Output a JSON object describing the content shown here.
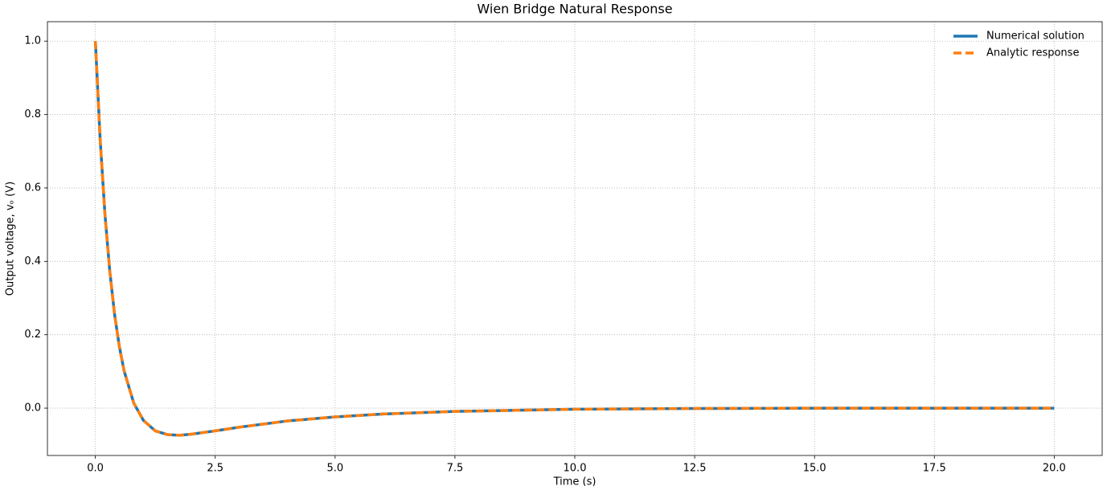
{
  "chart_data": {
    "type": "line",
    "title": "Wien Bridge Natural Response",
    "xlabel": "Time (s)",
    "ylabel": "Output voltage, vₒ (V)",
    "x": [
      0,
      0.1,
      0.2,
      0.3,
      0.4,
      0.5,
      0.6,
      0.8,
      1.0,
      1.25,
      1.5,
      1.75,
      2.0,
      2.5,
      3,
      4,
      5,
      6,
      7.5,
      10,
      12.5,
      15,
      17.5,
      20
    ],
    "series": [
      {
        "name": "Numerical solution",
        "color": "#1f77b4",
        "dash": false,
        "values": [
          1.0,
          0.732,
          0.528,
          0.374,
          0.256,
          0.168,
          0.101,
          0.014,
          -0.033,
          -0.062,
          -0.072,
          -0.074,
          -0.071,
          -0.062,
          -0.052,
          -0.035,
          -0.024,
          -0.016,
          -0.009,
          -0.003,
          -0.001,
          0,
          0,
          0
        ]
      },
      {
        "name": "Analytic response",
        "color": "#ff7f0e",
        "dash": true,
        "values": [
          1.0,
          0.732,
          0.528,
          0.374,
          0.256,
          0.168,
          0.101,
          0.014,
          -0.033,
          -0.062,
          -0.072,
          -0.074,
          -0.071,
          -0.062,
          -0.052,
          -0.035,
          -0.024,
          -0.016,
          -0.009,
          -0.003,
          -0.001,
          0,
          0,
          0
        ]
      }
    ],
    "xlim": [
      -1.0,
      21.0
    ],
    "ylim": [
      -0.129,
      1.053
    ],
    "xticks": [
      {
        "value": 0,
        "label": "0.0"
      },
      2.5,
      {
        "value": 5,
        "label": "5.0"
      },
      7.5,
      {
        "value": 10,
        "label": "10.0"
      },
      12.5,
      {
        "value": 15,
        "label": "15.0"
      },
      17.5,
      {
        "value": 20,
        "label": "20.0"
      }
    ],
    "yticks": [
      {
        "value": 0,
        "label": "0.0"
      },
      0.2,
      0.4,
      0.6,
      0.8,
      {
        "value": 1,
        "label": "1.0"
      }
    ],
    "grid": true,
    "legend": "upper right"
  }
}
